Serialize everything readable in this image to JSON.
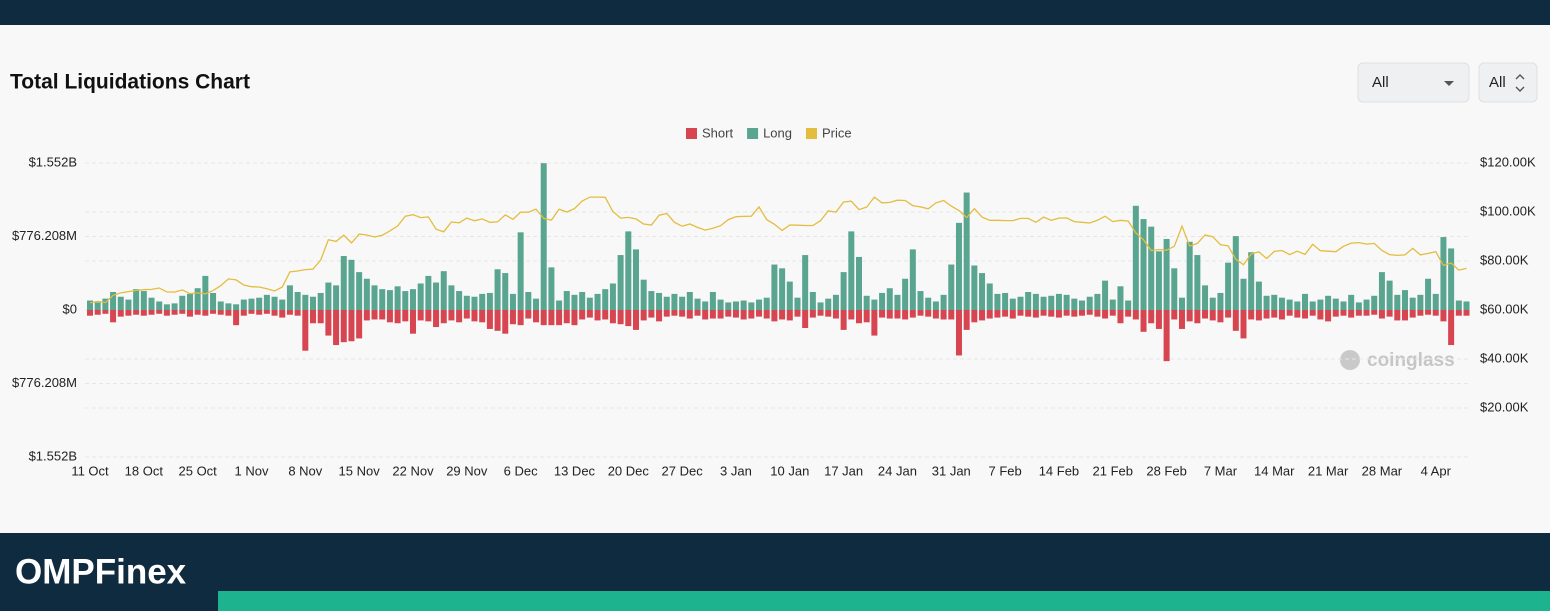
{
  "page": {
    "select_1": "All",
    "select_2": "All",
    "watermark": "coinglass",
    "brand": "OMPFinex"
  },
  "chart_data": {
    "type": "bar",
    "title": "Total Liquidations Chart",
    "categories": [
      "11 Oct",
      null,
      null,
      null,
      null,
      null,
      null,
      "18 Oct",
      null,
      null,
      null,
      null,
      null,
      null,
      "25 Oct",
      null,
      null,
      null,
      null,
      null,
      null,
      "1 Nov",
      null,
      null,
      null,
      null,
      null,
      null,
      "8 Nov",
      null,
      null,
      null,
      null,
      null,
      null,
      "15 Nov",
      null,
      null,
      null,
      null,
      null,
      null,
      "22 Nov",
      null,
      null,
      null,
      null,
      null,
      null,
      "29 Nov",
      null,
      null,
      null,
      null,
      null,
      null,
      "6 Dec",
      null,
      null,
      null,
      null,
      null,
      null,
      "13 Dec",
      null,
      null,
      null,
      null,
      null,
      null,
      "20 Dec",
      null,
      null,
      null,
      null,
      null,
      null,
      "27 Dec",
      null,
      null,
      null,
      null,
      null,
      null,
      "3 Jan",
      null,
      null,
      null,
      null,
      null,
      null,
      "10 Jan",
      null,
      null,
      null,
      null,
      null,
      null,
      "17 Jan",
      null,
      null,
      null,
      null,
      null,
      null,
      "24 Jan",
      null,
      null,
      null,
      null,
      null,
      null,
      "31 Jan",
      null,
      null,
      null,
      null,
      null,
      null,
      "7 Feb",
      null,
      null,
      null,
      null,
      null,
      null,
      "14 Feb",
      null,
      null,
      null,
      null,
      null,
      null,
      "21 Feb",
      null,
      null,
      null,
      null,
      null,
      null,
      "28 Feb",
      null,
      null,
      null,
      null,
      null,
      null,
      "7 Mar",
      null,
      null,
      null,
      null,
      null,
      null,
      "14 Mar",
      null,
      null,
      null,
      null,
      null,
      null,
      "21 Mar",
      null,
      null,
      null,
      null,
      null,
      null,
      "28 Mar",
      null,
      null,
      null,
      null,
      null,
      null,
      "4 Apr",
      null,
      null,
      null,
      null
    ],
    "series": [
      {
        "name": "Short",
        "color": "#d64550",
        "values": [
          -60,
          -50,
          -40,
          -130,
          -70,
          -60,
          -50,
          -60,
          -50,
          -40,
          -60,
          -50,
          -40,
          -70,
          -50,
          -60,
          -40,
          -50,
          -60,
          -160,
          -60,
          -40,
          -50,
          -40,
          -60,
          -80,
          -50,
          -60,
          -430,
          -140,
          -140,
          -270,
          -370,
          -340,
          -330,
          -300,
          -110,
          -100,
          -100,
          -130,
          -140,
          -120,
          -250,
          -110,
          -120,
          -180,
          -140,
          -110,
          -130,
          -90,
          -120,
          -130,
          -200,
          -220,
          -250,
          -150,
          -160,
          -90,
          -130,
          -160,
          -160,
          -160,
          -140,
          -160,
          -100,
          -80,
          -110,
          -100,
          -140,
          -150,
          -170,
          -210,
          -110,
          -80,
          -120,
          -70,
          -60,
          -70,
          -90,
          -60,
          -100,
          -90,
          -90,
          -70,
          -80,
          -100,
          -90,
          -70,
          -90,
          -120,
          -100,
          -110,
          -70,
          -190,
          -80,
          -60,
          -70,
          -90,
          -210,
          -100,
          -140,
          -130,
          -270,
          -80,
          -90,
          -90,
          -100,
          -80,
          -60,
          -70,
          -90,
          -100,
          -100,
          -480,
          -210,
          -130,
          -110,
          -90,
          -80,
          -70,
          -90,
          -60,
          -70,
          -80,
          -60,
          -70,
          -80,
          -60,
          -70,
          -60,
          -50,
          -70,
          -90,
          -60,
          -140,
          -70,
          -100,
          -230,
          -140,
          -200,
          -540,
          -100,
          -200,
          -120,
          -140,
          -90,
          -110,
          -130,
          -80,
          -220,
          -300,
          -100,
          -110,
          -90,
          -80,
          -100,
          -60,
          -80,
          -90,
          -60,
          -100,
          -120,
          -70,
          -60,
          -80,
          -60,
          -60,
          -50,
          -90,
          -70,
          -110,
          -110,
          -80,
          -60,
          -50,
          -60,
          -120,
          -370,
          -60,
          -60
        ]
      },
      {
        "name": "Long",
        "color": "#5aa590",
        "values": [
          100,
          80,
          120,
          190,
          140,
          110,
          220,
          200,
          130,
          90,
          60,
          70,
          150,
          170,
          230,
          360,
          180,
          90,
          70,
          60,
          110,
          120,
          130,
          160,
          140,
          110,
          260,
          190,
          160,
          140,
          180,
          290,
          260,
          570,
          530,
          400,
          330,
          260,
          220,
          210,
          250,
          200,
          220,
          280,
          360,
          290,
          410,
          260,
          200,
          150,
          140,
          170,
          180,
          430,
          390,
          170,
          820,
          190,
          120,
          1550,
          450,
          100,
          200,
          160,
          190,
          130,
          170,
          220,
          280,
          580,
          830,
          640,
          320,
          200,
          180,
          140,
          170,
          140,
          190,
          120,
          90,
          190,
          110,
          80,
          90,
          100,
          80,
          110,
          130,
          480,
          440,
          300,
          130,
          580,
          190,
          80,
          120,
          160,
          400,
          830,
          560,
          150,
          110,
          180,
          230,
          160,
          330,
          640,
          200,
          130,
          90,
          160,
          480,
          920,
          1240,
          470,
          390,
          280,
          170,
          180,
          120,
          140,
          190,
          170,
          140,
          150,
          170,
          160,
          120,
          100,
          140,
          170,
          310,
          110,
          250,
          100,
          1100,
          960,
          880,
          620,
          750,
          440,
          130,
          720,
          580,
          260,
          130,
          180,
          500,
          780,
          330,
          610,
          300,
          150,
          160,
          130,
          110,
          90,
          170,
          90,
          110,
          150,
          120,
          90,
          160,
          80,
          110,
          150,
          400,
          310,
          160,
          210,
          130,
          160,
          330,
          170,
          770,
          650,
          100,
          90
        ]
      },
      {
        "name": "Price",
        "color": "#e3bd3f",
        "axis": "y2",
        "values": [
          62900,
          63500,
          63000,
          66000,
          67000,
          67500,
          68000,
          68300,
          68400,
          69000,
          67400,
          67300,
          68200,
          66700,
          67000,
          66600,
          67900,
          69900,
          72700,
          72300,
          70200,
          69500,
          69400,
          68700,
          67800,
          69400,
          75600,
          75900,
          76500,
          76700,
          80400,
          88700,
          88000,
          90500,
          87400,
          91000,
          90600,
          89800,
          90500,
          92300,
          94300,
          98300,
          98900,
          97700,
          98000,
          93000,
          91900,
          95900,
          95600,
          97500,
          96400,
          97200,
          95800,
          96000,
          98800,
          97000,
          99900,
          99900,
          101200,
          97400,
          96700,
          101200,
          100000,
          101400,
          104500,
          106100,
          106100,
          106000,
          100200,
          97500,
          97800,
          97200,
          95100,
          94700,
          98700,
          99400,
          95800,
          94200,
          95100,
          93700,
          92600,
          93400,
          94400,
          96900,
          98100,
          98200,
          98300,
          102100,
          96900,
          95000,
          92500,
          94700,
          94600,
          94500,
          94500,
          96500,
          100500,
          99900,
          104100,
          104400,
          101000,
          102000,
          106100,
          103700,
          103900,
          104800,
          104700,
          102600,
          102100,
          101300,
          103700,
          104700,
          102400,
          100600,
          97700,
          101400,
          97900,
          96600,
          96600,
          96500,
          96500,
          97400,
          97400,
          95800,
          97900,
          96600,
          97500,
          97600,
          96100,
          95800,
          95500,
          96600,
          98300,
          96100,
          96600,
          96300,
          91500,
          88700,
          84300,
          84700,
          84400,
          86000,
          94200,
          86100,
          87200,
          90600,
          89900,
          86700,
          86200,
          80700,
          78500,
          82900,
          83700,
          81000,
          83900,
          84300,
          82600,
          84000,
          82700,
          86800,
          84200,
          84000,
          83800,
          86000,
          87300,
          87500,
          86900,
          87200,
          84300,
          82600,
          82300,
          82500,
          85200,
          82500,
          83100,
          83800,
          78200,
          79200,
          76300,
          77000
        ]
      }
    ],
    "ylim": [
      -1552,
      1552
    ],
    "yticks": [
      {
        "value": 1552,
        "label": "$1.552B"
      },
      {
        "value": 776.208,
        "label": "$776.208M"
      },
      {
        "value": 0,
        "label": "$0"
      },
      {
        "value": -776.208,
        "label": "$776.208M"
      },
      {
        "value": -1552,
        "label": "$1.552B"
      }
    ],
    "y2lim": [
      0,
      120000
    ],
    "y2ticks": [
      {
        "value": 20000,
        "label": "$20.00K"
      },
      {
        "value": 40000,
        "label": "$40.00K"
      },
      {
        "value": 60000,
        "label": "$60.00K"
      },
      {
        "value": 80000,
        "label": "$80.00K"
      },
      {
        "value": 100000,
        "label": "$100.00K"
      },
      {
        "value": 120000,
        "label": "$120.00K"
      }
    ],
    "grid": true,
    "legend": "top"
  }
}
